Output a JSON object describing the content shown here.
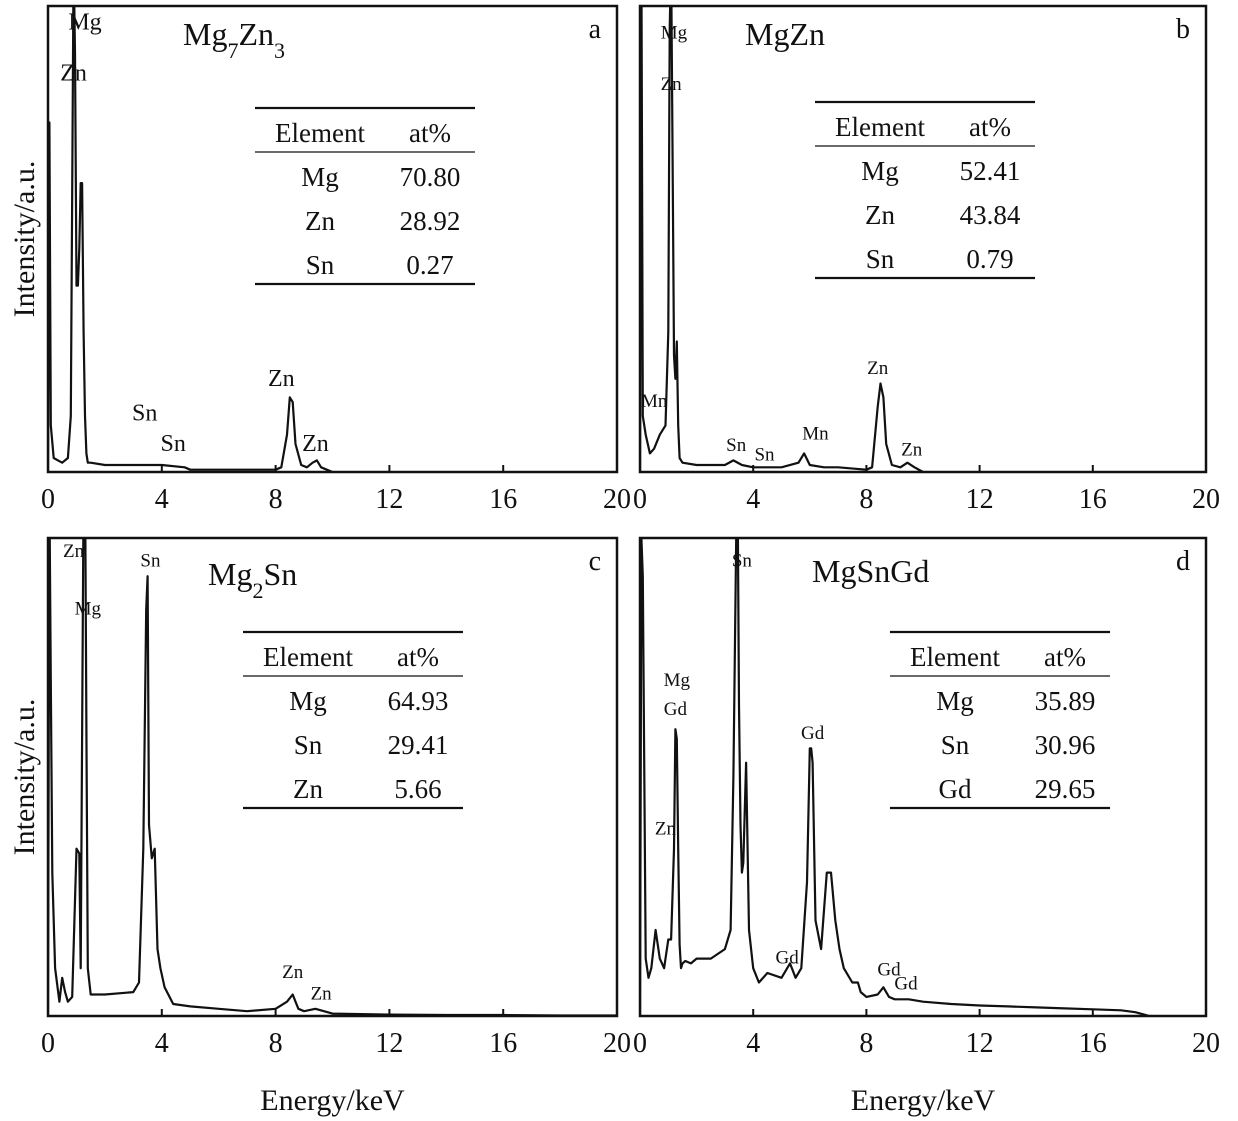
{
  "chart_data": [
    {
      "panel": "a",
      "type": "line",
      "phase_label": [
        "Mg",
        "7",
        "Zn",
        "3"
      ],
      "xlabel": "",
      "ylabel": "Intensity/a.u.",
      "xlim": [
        0,
        20
      ],
      "ylim": [
        0,
        100
      ],
      "xticks": [
        "0",
        "4",
        "8",
        "12",
        "16",
        "20"
      ],
      "x": [
        0,
        0.05,
        0.1,
        0.2,
        0.35,
        0.5,
        0.7,
        0.8,
        0.85,
        0.9,
        0.95,
        1.0,
        1.05,
        1.1,
        1.15,
        1.2,
        1.25,
        1.3,
        1.35,
        1.4,
        1.5,
        2,
        3,
        4,
        4.8,
        5,
        6,
        7,
        8,
        8.2,
        8.4,
        8.5,
        8.6,
        8.7,
        8.9,
        9.1,
        9.3,
        9.45,
        9.6,
        9.8,
        10
      ],
      "y": [
        0,
        75,
        10,
        3,
        2.5,
        2,
        3,
        12,
        60,
        110,
        90,
        40,
        40,
        48,
        62,
        62,
        30,
        12,
        4,
        2,
        2,
        1.5,
        1.5,
        1.5,
        1,
        0.5,
        0.5,
        0.5,
        0.5,
        1,
        8,
        16,
        15,
        6,
        1.5,
        1,
        2,
        2.5,
        1,
        0.5,
        0
      ],
      "peak_labels": [
        {
          "text": "Mg",
          "x": 1.3,
          "y": 95
        },
        {
          "text": "Zn",
          "x": 0.9,
          "y": 84
        },
        {
          "text": "Sn",
          "x": 3.4,
          "y": 11
        },
        {
          "text": "Sn",
          "x": 4.4,
          "y": 4.5
        },
        {
          "text": "Zn",
          "x": 8.2,
          "y": 18.5
        },
        {
          "text": "Zn",
          "x": 9.4,
          "y": 4.5
        }
      ],
      "table": {
        "headers": [
          "Element",
          "at%"
        ],
        "rows": [
          [
            "Mg",
            "70.80"
          ],
          [
            "Zn",
            "28.92"
          ],
          [
            "Sn",
            "0.27"
          ]
        ]
      }
    },
    {
      "panel": "b",
      "type": "line",
      "phase_label": [
        "MgZn"
      ],
      "xlabel": "",
      "ylabel": "",
      "xlim": [
        0,
        20
      ],
      "ylim": [
        0,
        100
      ],
      "xticks": [
        "0",
        "4",
        "8",
        "12",
        "16",
        "20"
      ],
      "x": [
        0,
        0.05,
        0.1,
        0.2,
        0.35,
        0.5,
        0.7,
        0.9,
        1.0,
        1.05,
        1.1,
        1.15,
        1.2,
        1.25,
        1.3,
        1.35,
        1.4,
        1.5,
        2,
        3,
        3.3,
        3.6,
        4,
        5,
        5.6,
        5.8,
        6,
        6.5,
        7,
        8,
        8.2,
        8.4,
        8.5,
        8.6,
        8.7,
        8.9,
        9.2,
        9.45,
        9.7,
        10
      ],
      "y": [
        0,
        110,
        12,
        8,
        4,
        5,
        8,
        10,
        30,
        95,
        110,
        70,
        25,
        20,
        28,
        10,
        3,
        2,
        1.5,
        1.5,
        2.5,
        1.5,
        1,
        1,
        2,
        4,
        1.5,
        1,
        1,
        0.5,
        1,
        14,
        19,
        16,
        6,
        1.5,
        1,
        2,
        1,
        0
      ],
      "peak_labels": [
        {
          "text": "Mg",
          "x": 1.2,
          "y": 93
        },
        {
          "text": "Zn",
          "x": 1.1,
          "y": 82
        },
        {
          "text": "Mn",
          "x": 0.5,
          "y": 14
        },
        {
          "text": "Sn",
          "x": 3.4,
          "y": 4.5
        },
        {
          "text": "Sn",
          "x": 4.4,
          "y": 2.5
        },
        {
          "text": "Mn",
          "x": 6.2,
          "y": 7
        },
        {
          "text": "Zn",
          "x": 8.4,
          "y": 21
        },
        {
          "text": "Zn",
          "x": 9.6,
          "y": 3.5
        }
      ],
      "table": {
        "headers": [
          "Element",
          "at%"
        ],
        "rows": [
          [
            "Mg",
            "52.41"
          ],
          [
            "Zn",
            "43.84"
          ],
          [
            "Sn",
            "0.79"
          ]
        ]
      }
    },
    {
      "panel": "c",
      "type": "line",
      "phase_label": [
        "Mg",
        "2",
        "Sn"
      ],
      "xlabel": "Energy/keV",
      "ylabel": "Intensity/a.u.",
      "xlim": [
        0,
        20
      ],
      "ylim": [
        0,
        100
      ],
      "xticks": [
        "0",
        "4",
        "8",
        "12",
        "16",
        "20"
      ],
      "x": [
        0,
        0.05,
        0.1,
        0.15,
        0.25,
        0.4,
        0.5,
        0.6,
        0.7,
        0.85,
        1.0,
        1.1,
        1.15,
        1.25,
        1.3,
        1.35,
        1.4,
        1.5,
        2,
        3,
        3.2,
        3.35,
        3.45,
        3.5,
        3.55,
        3.65,
        3.75,
        3.85,
        3.95,
        4.1,
        4.4,
        5,
        6,
        7,
        8,
        8.4,
        8.6,
        8.7,
        8.8,
        9.0,
        9.4,
        10,
        12,
        14,
        16,
        18,
        20
      ],
      "y": [
        0,
        110,
        70,
        30,
        10,
        3,
        8,
        5,
        3,
        4,
        35,
        34,
        10,
        110,
        115,
        60,
        10,
        4.5,
        4.5,
        5,
        7,
        35,
        85,
        92,
        40,
        33,
        35,
        14,
        10,
        6,
        2.5,
        2,
        1.5,
        1,
        1.5,
        3,
        4.5,
        3,
        1.5,
        1,
        1.5,
        0.5,
        0.3,
        0.2,
        0.2,
        0.1,
        0.1
      ],
      "peak_labels": [
        {
          "text": "Zn",
          "x": 0.9,
          "y": 96
        },
        {
          "text": "Mg",
          "x": 1.4,
          "y": 84
        },
        {
          "text": "Sn",
          "x": 3.6,
          "y": 94
        },
        {
          "text": "Zn",
          "x": 8.6,
          "y": 8
        },
        {
          "text": "Zn",
          "x": 9.6,
          "y": 3.5
        }
      ],
      "table": {
        "headers": [
          "Element",
          "at%"
        ],
        "rows": [
          [
            "Mg",
            "64.93"
          ],
          [
            "Sn",
            "29.41"
          ],
          [
            "Zn",
            "5.66"
          ]
        ]
      }
    },
    {
      "panel": "d",
      "type": "line",
      "phase_label": [
        "MgSnGd"
      ],
      "xlabel": "Energy/keV",
      "ylabel": "",
      "xlim": [
        0,
        20
      ],
      "ylim": [
        0,
        100
      ],
      "xticks": [
        "0",
        "4",
        "8",
        "12",
        "16",
        "20"
      ],
      "x": [
        0,
        0.05,
        0.1,
        0.2,
        0.3,
        0.4,
        0.55,
        0.7,
        0.85,
        1.0,
        1.1,
        1.2,
        1.25,
        1.3,
        1.35,
        1.4,
        1.45,
        1.5,
        1.6,
        1.8,
        2,
        2.5,
        3,
        3.2,
        3.3,
        3.4,
        3.45,
        3.5,
        3.55,
        3.6,
        3.65,
        3.75,
        3.85,
        4.0,
        4.2,
        4.5,
        5,
        5.3,
        5.5,
        5.7,
        5.9,
        6.0,
        6.05,
        6.1,
        6.2,
        6.4,
        6.6,
        6.75,
        6.9,
        7.05,
        7.2,
        7.5,
        7.7,
        7.8,
        8.0,
        8.4,
        8.6,
        8.8,
        9.0,
        9.5,
        10,
        11,
        12,
        13,
        14,
        15,
        16,
        17,
        17.5,
        18
      ],
      "y": [
        0,
        100,
        92,
        12,
        8,
        10,
        18,
        12,
        10,
        16,
        16,
        35,
        60,
        58,
        35,
        15,
        10,
        11,
        11.5,
        11,
        12,
        12,
        14,
        18,
        50,
        100,
        110,
        65,
        40,
        30,
        32,
        53,
        18,
        10,
        7,
        9,
        8,
        11,
        8,
        10,
        28,
        56,
        56,
        53,
        20,
        14,
        30,
        30,
        20,
        14,
        10,
        7,
        7,
        5,
        4,
        4.5,
        6,
        4,
        3.5,
        3.5,
        3,
        2.5,
        2.2,
        2,
        1.8,
        1.6,
        1.4,
        1.2,
        0.8,
        0
      ],
      "peak_labels": [
        {
          "text": "Sn",
          "x": 3.6,
          "y": 94
        },
        {
          "text": "Mg",
          "x": 1.3,
          "y": 69
        },
        {
          "text": "Gd",
          "x": 1.25,
          "y": 63
        },
        {
          "text": "Zn",
          "x": 0.9,
          "y": 38
        },
        {
          "text": "Gd",
          "x": 6.1,
          "y": 58
        },
        {
          "text": "Gd",
          "x": 5.2,
          "y": 11
        },
        {
          "text": "Gd",
          "x": 8.8,
          "y": 8.5
        },
        {
          "text": "Gd",
          "x": 9.4,
          "y": 5.5
        }
      ],
      "table": {
        "headers": [
          "Element",
          "at%"
        ],
        "rows": [
          [
            "Mg",
            "35.89"
          ],
          [
            "Sn",
            "30.96"
          ],
          [
            "Gd",
            "29.65"
          ]
        ]
      }
    }
  ]
}
